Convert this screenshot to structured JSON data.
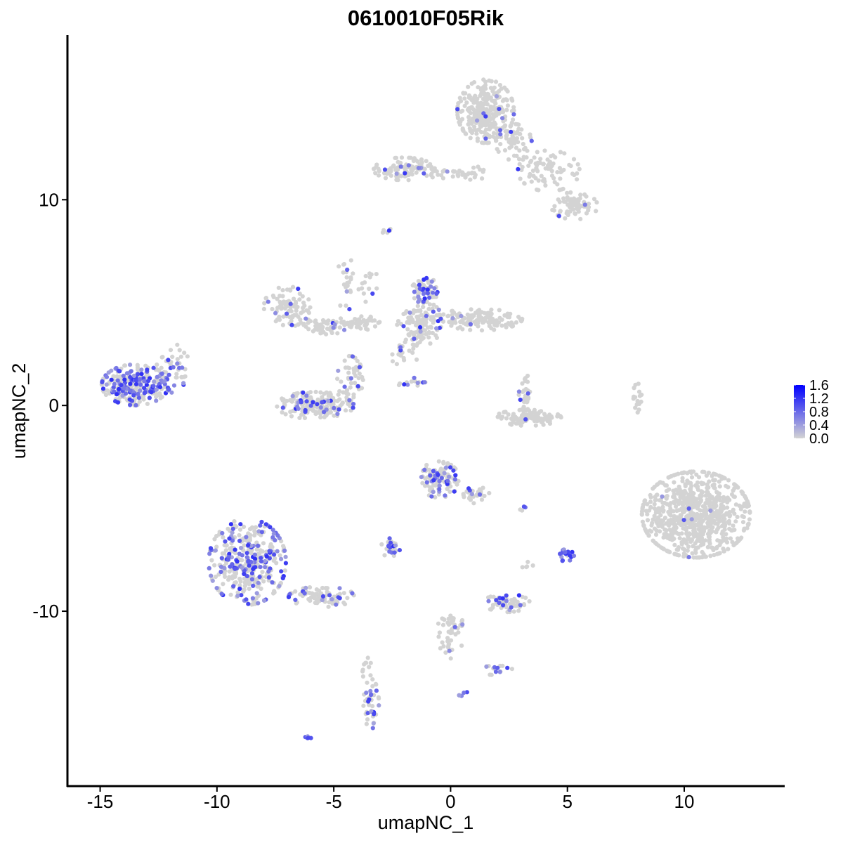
{
  "chart_data": {
    "type": "scatter",
    "title": "0610010F05Rik",
    "xlabel": "umapNC_1",
    "ylabel": "umapNC_2",
    "xlim": [
      -16.4,
      14.3
    ],
    "ylim": [
      -18.5,
      18.0
    ],
    "x_ticks": [
      -15,
      -10,
      -5,
      0,
      5,
      10
    ],
    "x_tick_labels": [
      "-15",
      "-10",
      "-5",
      "0",
      "5",
      "10"
    ],
    "y_ticks": [
      -10,
      0,
      10
    ],
    "y_tick_labels": [
      "-10",
      "0",
      "10"
    ],
    "grid": false,
    "legend_position": "right",
    "color_scale": {
      "low_color": "#d3d3d3",
      "high_color": "#0000ff",
      "min": 0.0,
      "max": 1.6,
      "ticks": [
        0.0,
        0.4,
        0.8,
        1.2,
        1.6
      ],
      "tick_labels": [
        "0.0",
        "0.4",
        "0.8",
        "1.2",
        "1.6"
      ]
    },
    "clusters": [
      {
        "cx": -13.5,
        "cy": 1.0,
        "rx": 1.3,
        "ry": 0.9,
        "n": 260,
        "frac": 0.45,
        "seed": 11
      },
      {
        "cx": -12.0,
        "cy": 1.5,
        "rx": 0.6,
        "ry": 0.9,
        "n": 40,
        "frac": 0.35,
        "seed": 12
      },
      {
        "cx": -7.0,
        "cy": 4.8,
        "rx": 0.9,
        "ry": 0.9,
        "n": 90,
        "frac": 0.05,
        "seed": 13
      },
      {
        "cx": -5.3,
        "cy": 3.9,
        "rx": 0.9,
        "ry": 0.4,
        "n": 60,
        "frac": 0.06,
        "seed": 14
      },
      {
        "cx": -3.8,
        "cy": 4.0,
        "rx": 0.7,
        "ry": 0.3,
        "n": 40,
        "frac": 0.03,
        "seed": 15
      },
      {
        "cx": -5.8,
        "cy": 0.0,
        "rx": 1.5,
        "ry": 0.6,
        "n": 180,
        "frac": 0.15,
        "seed": 16
      },
      {
        "cx": -4.3,
        "cy": 1.3,
        "rx": 0.5,
        "ry": 1.0,
        "n": 50,
        "frac": 0.12,
        "seed": 17
      },
      {
        "cx": -1.1,
        "cy": 5.6,
        "rx": 0.5,
        "ry": 0.6,
        "n": 60,
        "frac": 0.35,
        "seed": 18
      },
      {
        "cx": -1.3,
        "cy": 4.0,
        "rx": 0.9,
        "ry": 1.0,
        "n": 120,
        "frac": 0.06,
        "seed": 19
      },
      {
        "cx": 1.3,
        "cy": 4.2,
        "rx": 1.6,
        "ry": 0.5,
        "n": 130,
        "frac": 0.06,
        "seed": 20
      },
      {
        "cx": 1.5,
        "cy": 14.3,
        "rx": 1.1,
        "ry": 1.4,
        "n": 300,
        "frac": 0.03,
        "seed": 21
      },
      {
        "cx": 2.7,
        "cy": 12.8,
        "rx": 0.7,
        "ry": 0.8,
        "n": 60,
        "frac": 0.02,
        "seed": 22
      },
      {
        "cx": 4.2,
        "cy": 11.4,
        "rx": 1.2,
        "ry": 0.9,
        "n": 80,
        "frac": 0.03,
        "seed": 23
      },
      {
        "cx": 5.3,
        "cy": 9.7,
        "rx": 0.9,
        "ry": 0.6,
        "n": 70,
        "frac": 0.06,
        "seed": 24
      },
      {
        "cx": -2.0,
        "cy": 11.5,
        "rx": 1.2,
        "ry": 0.5,
        "n": 90,
        "frac": 0.04,
        "seed": 25
      },
      {
        "cx": 0.5,
        "cy": 11.3,
        "rx": 1.5,
        "ry": 0.3,
        "n": 40,
        "frac": 0.08,
        "seed": 26
      },
      {
        "cx": 3.3,
        "cy": -0.6,
        "rx": 1.3,
        "ry": 0.35,
        "n": 110,
        "frac": 0.01,
        "seed": 27
      },
      {
        "cx": 3.2,
        "cy": 0.6,
        "rx": 0.3,
        "ry": 0.8,
        "n": 30,
        "frac": 0.05,
        "seed": 28
      },
      {
        "cx": 8.0,
        "cy": 0.2,
        "rx": 0.2,
        "ry": 0.8,
        "n": 18,
        "frac": 0.0,
        "seed": 29
      },
      {
        "cx": 10.5,
        "cy": -5.3,
        "rx": 2.1,
        "ry": 1.9,
        "n": 750,
        "frac": 0.008,
        "seed": 30
      },
      {
        "cx": -0.5,
        "cy": -3.6,
        "rx": 0.8,
        "ry": 0.8,
        "n": 110,
        "frac": 0.25,
        "seed": 31
      },
      {
        "cx": 1.1,
        "cy": -4.3,
        "rx": 0.5,
        "ry": 0.5,
        "n": 30,
        "frac": 0.1,
        "seed": 32
      },
      {
        "cx": -8.7,
        "cy": -7.6,
        "rx": 1.5,
        "ry": 1.9,
        "n": 380,
        "frac": 0.35,
        "seed": 33
      },
      {
        "cx": -5.5,
        "cy": -9.3,
        "rx": 1.3,
        "ry": 0.45,
        "n": 90,
        "frac": 0.25,
        "seed": 34
      },
      {
        "cx": -2.6,
        "cy": -6.9,
        "rx": 0.4,
        "ry": 0.4,
        "n": 30,
        "frac": 0.35,
        "seed": 35
      },
      {
        "cx": 2.4,
        "cy": -9.6,
        "rx": 0.9,
        "ry": 0.4,
        "n": 60,
        "frac": 0.25,
        "seed": 36
      },
      {
        "cx": 5.0,
        "cy": -7.3,
        "rx": 0.3,
        "ry": 0.3,
        "n": 20,
        "frac": 0.9,
        "seed": 37
      },
      {
        "cx": 0.0,
        "cy": -11.0,
        "rx": 0.5,
        "ry": 1.2,
        "n": 50,
        "frac": 0.05,
        "seed": 38
      },
      {
        "cx": 2.0,
        "cy": -12.8,
        "rx": 0.6,
        "ry": 0.3,
        "n": 15,
        "frac": 0.3,
        "seed": 39
      },
      {
        "cx": -3.4,
        "cy": -14.5,
        "rx": 0.3,
        "ry": 1.1,
        "n": 40,
        "frac": 0.3,
        "seed": 40
      },
      {
        "cx": -3.6,
        "cy": -12.6,
        "rx": 0.2,
        "ry": 0.8,
        "n": 10,
        "frac": 0.0,
        "seed": 41
      },
      {
        "cx": -4.5,
        "cy": 6.0,
        "rx": 0.3,
        "ry": 1.4,
        "n": 22,
        "frac": 0.15,
        "seed": 42
      },
      {
        "cx": -3.5,
        "cy": 5.5,
        "rx": 0.4,
        "ry": 1.2,
        "n": 15,
        "frac": 0.1,
        "seed": 43
      },
      {
        "cx": -2.0,
        "cy": 2.6,
        "rx": 0.6,
        "ry": 0.6,
        "n": 20,
        "frac": 0.2,
        "seed": 44
      },
      {
        "cx": -1.8,
        "cy": 1.1,
        "rx": 0.7,
        "ry": 0.4,
        "n": 15,
        "frac": 0.3,
        "seed": 45
      },
      {
        "cx": -11.7,
        "cy": 2.4,
        "rx": 0.4,
        "ry": 0.5,
        "n": 12,
        "frac": 0.0,
        "seed": 46
      },
      {
        "cx": -2.8,
        "cy": 8.6,
        "rx": 0.2,
        "ry": 0.2,
        "n": 6,
        "frac": 0.2,
        "seed": 47
      },
      {
        "cx": -6.0,
        "cy": -16.1,
        "rx": 0.2,
        "ry": 0.15,
        "n": 5,
        "frac": 0.6,
        "seed": 48
      },
      {
        "cx": 0.5,
        "cy": -14.0,
        "rx": 0.2,
        "ry": 0.15,
        "n": 5,
        "frac": 0.6,
        "seed": 49
      },
      {
        "cx": 3.0,
        "cy": -5.0,
        "rx": 0.2,
        "ry": 0.1,
        "n": 4,
        "frac": 0.5,
        "seed": 50
      },
      {
        "cx": 3.3,
        "cy": -7.7,
        "rx": 0.3,
        "ry": 0.2,
        "n": 5,
        "frac": 0.0,
        "seed": 51
      }
    ]
  }
}
